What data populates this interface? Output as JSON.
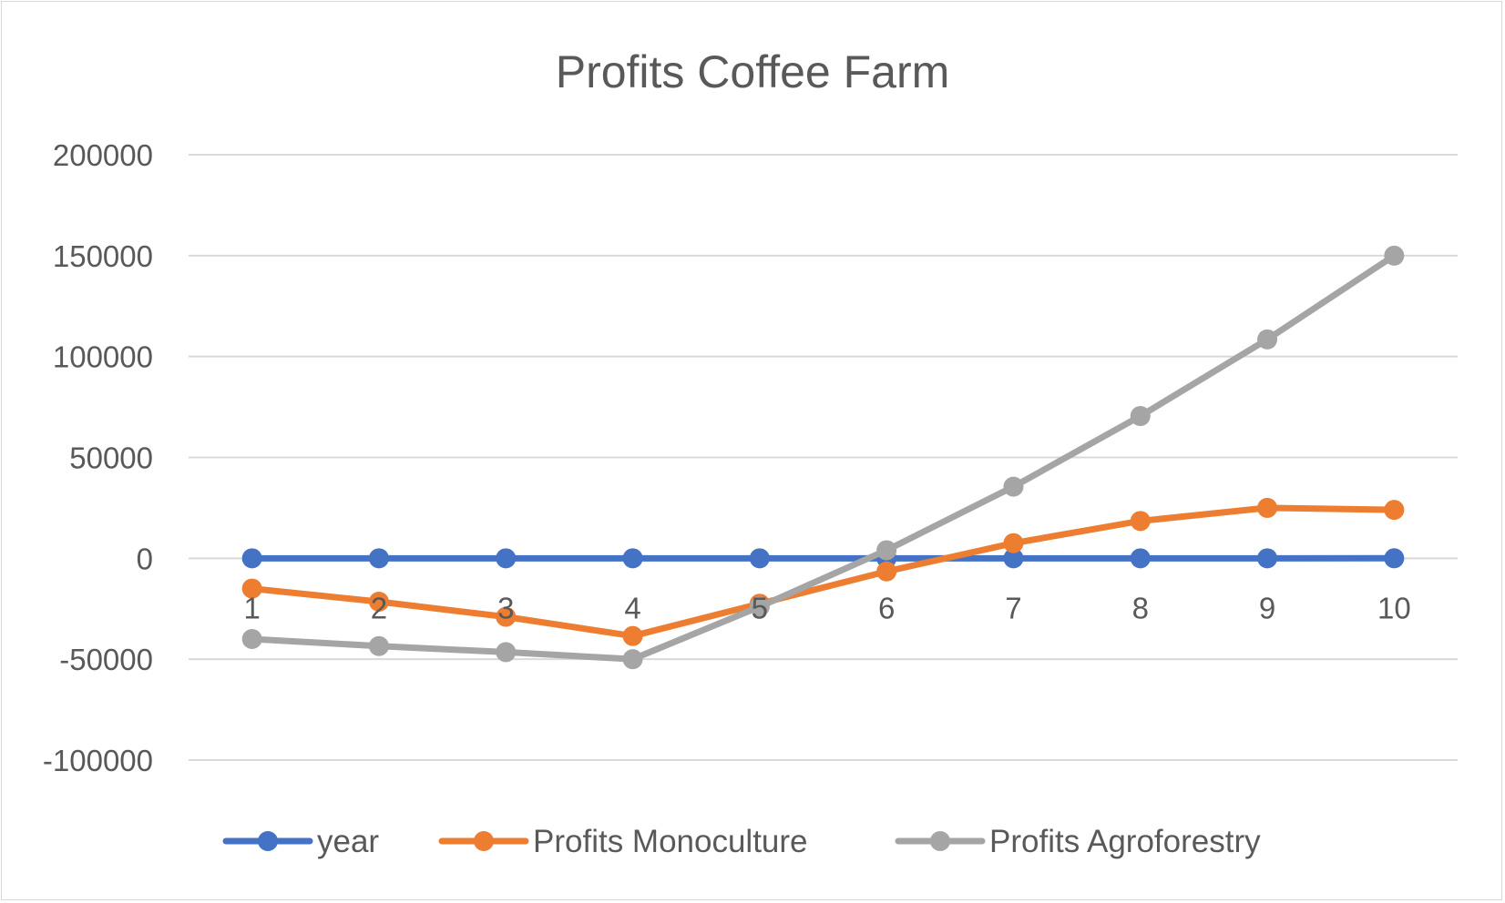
{
  "chart_data": {
    "type": "line",
    "title": "Profits Coffee Farm",
    "xlabel": "",
    "ylabel": "",
    "categories": [
      "1",
      "2",
      "3",
      "4",
      "5",
      "6",
      "7",
      "8",
      "9",
      "10"
    ],
    "ylim": [
      -100000,
      200000
    ],
    "yticks": [
      "200000",
      "150000",
      "100000",
      "50000",
      "0",
      "-50000",
      "-100000"
    ],
    "grid": true,
    "legend_position": "bottom",
    "series": [
      {
        "name": "year",
        "color": "#4472C4",
        "values": [
          1,
          2,
          3,
          4,
          5,
          6,
          7,
          8,
          9,
          10
        ]
      },
      {
        "name": "Profits Monoculture",
        "color": "#ED7D31",
        "values": [
          -15000,
          -21500,
          -29000,
          -38500,
          -22500,
          -6500,
          7500,
          18500,
          25000,
          24000
        ]
      },
      {
        "name": "Profits Agroforestry",
        "color": "#A5A5A5",
        "values": [
          -40000,
          -43500,
          -46500,
          -50000,
          -24000,
          4000,
          35500,
          70500,
          108500,
          150000
        ]
      }
    ]
  }
}
